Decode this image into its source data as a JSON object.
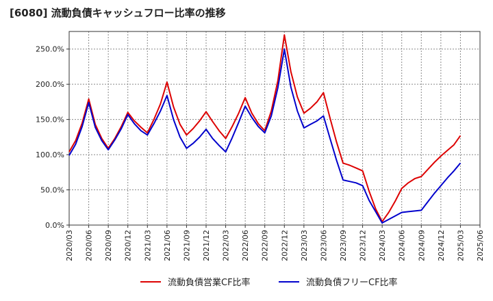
{
  "header": {
    "title": "[6080]  流動負債キャッシュフロー比率の推移"
  },
  "chart_data": {
    "type": "line",
    "title": "[6080]  流動負債キャッシュフロー比率の推移",
    "xlabel": "",
    "ylabel": "",
    "ylim": [
      0,
      275
    ],
    "y_ticks": [
      "0.0%",
      "50.0%",
      "100.0%",
      "150.0%",
      "200.0%",
      "250.0%"
    ],
    "y_tick_values": [
      0,
      50,
      100,
      150,
      200,
      250
    ],
    "x_ticks": [
      "2020/03",
      "2020/06",
      "2020/09",
      "2020/12",
      "2021/03",
      "2021/06",
      "2021/09",
      "2021/12",
      "2022/03",
      "2022/06",
      "2022/09",
      "2022/12",
      "2023/03",
      "2023/06",
      "2023/09",
      "2023/12",
      "2024/03",
      "2024/06",
      "2024/09",
      "2024/12",
      "2025/03",
      "2025/06"
    ],
    "grid": true,
    "legend_position": "bottom",
    "x": [
      "2020/03",
      "2020/04",
      "2020/05",
      "2020/06",
      "2020/07",
      "2020/08",
      "2020/09",
      "2020/10",
      "2020/11",
      "2020/12",
      "2021/01",
      "2021/02",
      "2021/03",
      "2021/04",
      "2021/05",
      "2021/06",
      "2021/07",
      "2021/08",
      "2021/09",
      "2021/10",
      "2021/11",
      "2021/12",
      "2022/01",
      "2022/02",
      "2022/03",
      "2022/04",
      "2022/05",
      "2022/06",
      "2022/07",
      "2022/08",
      "2022/09",
      "2022/10",
      "2022/11",
      "2022/12",
      "2023/01",
      "2023/02",
      "2023/03",
      "2023/04",
      "2023/05",
      "2023/06",
      "2023/07",
      "2023/08",
      "2023/09",
      "2023/10",
      "2023/11",
      "2023/12",
      "2024/01",
      "2024/02",
      "2024/03",
      "2024/04",
      "2024/05",
      "2024/06",
      "2024/07",
      "2024/08",
      "2024/09",
      "2024/10",
      "2024/11",
      "2024/12",
      "2025/01",
      "2025/02",
      "2025/03"
    ],
    "series": [
      {
        "name": "流動負債営業CF比率",
        "color": "#dd0000",
        "values": [
          104,
          120,
          145,
          179,
          143,
          123,
          109,
          123,
          140,
          160,
          148,
          139,
          131,
          150,
          172,
          203,
          168,
          143,
          128,
          137,
          148,
          161,
          147,
          134,
          123,
          140,
          159,
          181,
          159,
          144,
          134,
          162,
          205,
          270,
          218,
          182,
          159,
          166,
          175,
          188,
          152,
          118,
          88,
          85,
          81,
          77,
          48,
          23,
          5,
          18,
          34,
          52,
          60,
          66,
          69,
          79,
          89,
          98,
          106,
          114,
          127
        ]
      },
      {
        "name": "流動負債フリーCF比率",
        "color": "#0000cc",
        "values": [
          99,
          115,
          140,
          174,
          139,
          120,
          107,
          121,
          137,
          157,
          144,
          134,
          128,
          144,
          162,
          184,
          150,
          125,
          109,
          116,
          125,
          136,
          123,
          113,
          104,
          124,
          146,
          169,
          153,
          140,
          131,
          155,
          195,
          250,
          196,
          162,
          138,
          143,
          148,
          155,
          123,
          92,
          64,
          62,
          60,
          56,
          35,
          19,
          3,
          8,
          13,
          18,
          19,
          20,
          21,
          33,
          45,
          56,
          67,
          77,
          88
        ]
      }
    ]
  }
}
